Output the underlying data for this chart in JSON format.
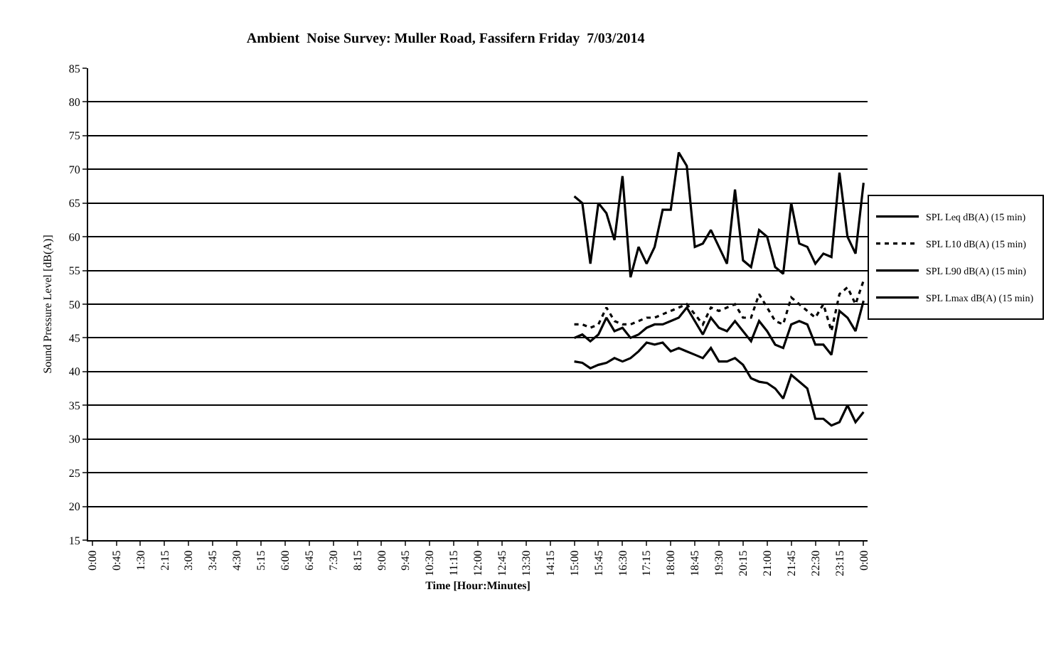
{
  "chart_data": {
    "type": "line",
    "title": "Ambient  Noise Survey: Muller Road, Fassifern Friday  7/03/2014",
    "xlabel": "Time [Hour:Minutes]",
    "ylabel": "Sound Pressure Level [dB(A)]",
    "categories": [
      "0:00",
      null,
      null,
      "0:45",
      null,
      null,
      "1:30",
      null,
      null,
      "2:15",
      null,
      null,
      "3:00",
      null,
      null,
      "3:45",
      null,
      null,
      "4:30",
      null,
      null,
      "5:15",
      null,
      null,
      "6:00",
      null,
      null,
      "6:45",
      null,
      null,
      "7:30",
      null,
      null,
      "8:15",
      null,
      null,
      "9:00",
      null,
      null,
      "9:45",
      null,
      null,
      "10:30",
      null,
      null,
      "11:15",
      null,
      null,
      "12:00",
      null,
      null,
      "12:45",
      null,
      null,
      "13:30",
      null,
      null,
      "14:15",
      null,
      null,
      "15:00",
      null,
      null,
      "15:45",
      null,
      null,
      "16:30",
      null,
      null,
      "17:15",
      null,
      null,
      "18:00",
      null,
      null,
      "18:45",
      null,
      null,
      "19:30",
      null,
      null,
      "20:15",
      null,
      null,
      "21:00",
      null,
      null,
      "21:45",
      null,
      null,
      "22:30",
      null,
      null,
      "23:15",
      null,
      null,
      "0:00"
    ],
    "series": [
      {
        "name": "SPL Leq dB(A) (15 min)",
        "color": "#000000",
        "line_style": "solid",
        "values": [
          null,
          null,
          null,
          null,
          null,
          null,
          null,
          null,
          null,
          null,
          null,
          null,
          null,
          null,
          null,
          null,
          null,
          null,
          null,
          null,
          null,
          null,
          null,
          null,
          null,
          null,
          null,
          null,
          null,
          null,
          null,
          null,
          null,
          null,
          null,
          null,
          null,
          null,
          null,
          null,
          null,
          null,
          null,
          null,
          null,
          null,
          null,
          null,
          null,
          null,
          null,
          null,
          null,
          null,
          null,
          null,
          null,
          null,
          null,
          null,
          45,
          45.5,
          44.5,
          45.5,
          48,
          46,
          46.5,
          45,
          45.5,
          46.5,
          47,
          47,
          47.5,
          48,
          49.5,
          47.5,
          45.5,
          48,
          46.5,
          46,
          47.5,
          46,
          44.5,
          47.5,
          46,
          44,
          43.5,
          47,
          47.5,
          47,
          44,
          44,
          42.5,
          49,
          48,
          46,
          50.5
        ]
      },
      {
        "name": "SPL L10 dB(A) (15 min)",
        "color": "#000000",
        "line_style": "dotted",
        "values": [
          null,
          null,
          null,
          null,
          null,
          null,
          null,
          null,
          null,
          null,
          null,
          null,
          null,
          null,
          null,
          null,
          null,
          null,
          null,
          null,
          null,
          null,
          null,
          null,
          null,
          null,
          null,
          null,
          null,
          null,
          null,
          null,
          null,
          null,
          null,
          null,
          null,
          null,
          null,
          null,
          null,
          null,
          null,
          null,
          null,
          null,
          null,
          null,
          null,
          null,
          null,
          null,
          null,
          null,
          null,
          null,
          null,
          null,
          null,
          null,
          47,
          47,
          46.5,
          47,
          49.5,
          47.5,
          47,
          47,
          47.5,
          48,
          48,
          48.5,
          49,
          49.5,
          50,
          48.5,
          47,
          49.5,
          49,
          49.5,
          50,
          48,
          48,
          51.5,
          49.5,
          47.5,
          47,
          51,
          50,
          49,
          48,
          50,
          46,
          51.5,
          52.5,
          50,
          53.5
        ]
      },
      {
        "name": "SPL L90 dB(A) (15 min)",
        "color": "#000000",
        "line_style": "solid",
        "values": [
          null,
          null,
          null,
          null,
          null,
          null,
          null,
          null,
          null,
          null,
          null,
          null,
          null,
          null,
          null,
          null,
          null,
          null,
          null,
          null,
          null,
          null,
          null,
          null,
          null,
          null,
          null,
          null,
          null,
          null,
          null,
          null,
          null,
          null,
          null,
          null,
          null,
          null,
          null,
          null,
          null,
          null,
          null,
          null,
          null,
          null,
          null,
          null,
          null,
          null,
          null,
          null,
          null,
          null,
          null,
          null,
          null,
          null,
          null,
          null,
          41.5,
          41.3,
          40.5,
          41,
          41.3,
          42,
          41.5,
          42,
          43,
          44.3,
          44,
          44.3,
          43,
          43.5,
          43,
          42.5,
          42,
          43.5,
          41.5,
          41.5,
          42,
          41,
          39,
          38.5,
          38.3,
          37.5,
          36,
          39.5,
          38.5,
          37.5,
          33,
          33,
          32,
          32.5,
          35,
          32.5,
          34
        ]
      },
      {
        "name": "SPL Lmax dB(A) (15 min)",
        "color": "#000000",
        "line_style": "solid",
        "values": [
          null,
          null,
          null,
          null,
          null,
          null,
          null,
          null,
          null,
          null,
          null,
          null,
          null,
          null,
          null,
          null,
          null,
          null,
          null,
          null,
          null,
          null,
          null,
          null,
          null,
          null,
          null,
          null,
          null,
          null,
          null,
          null,
          null,
          null,
          null,
          null,
          null,
          null,
          null,
          null,
          null,
          null,
          null,
          null,
          null,
          null,
          null,
          null,
          null,
          null,
          null,
          null,
          null,
          null,
          null,
          null,
          null,
          null,
          null,
          null,
          66,
          65,
          56,
          65,
          63.5,
          59.5,
          69,
          54,
          58.5,
          56,
          58.5,
          64,
          64,
          72.5,
          70.5,
          58.5,
          59,
          61,
          58.5,
          56,
          67,
          56.5,
          55.5,
          61,
          60,
          55.5,
          54.5,
          65,
          59,
          58.5,
          56,
          57.5,
          57,
          69.5,
          60,
          57.5,
          68
        ]
      }
    ],
    "ylim": [
      15,
      85
    ],
    "yticks": [
      15,
      20,
      25,
      30,
      35,
      40,
      45,
      50,
      55,
      60,
      65,
      70,
      75,
      80,
      85
    ],
    "grid": "y",
    "legend": "right",
    "marker": "none"
  }
}
